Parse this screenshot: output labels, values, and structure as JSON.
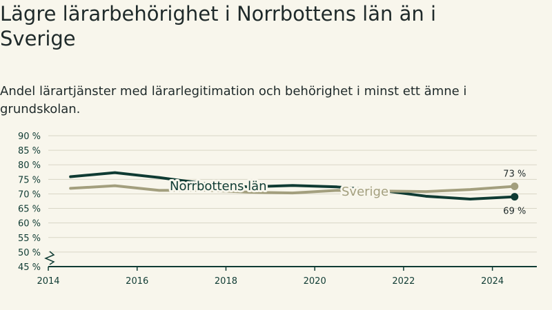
{
  "title": "Lägre lärarbehörighet i Norrbottens län än i Sverige",
  "subtitle": "Andel lärartjänster med lärarlegitimation och behörighet i minst ett ämne i grundskolan.",
  "chart_data": {
    "type": "line",
    "title": "Lägre lärarbehörighet i Norrbottens län än i Sverige",
    "subtitle": "Andel lärartjänster med lärarlegitimation och behörighet i minst ett ämne i grundskolan.",
    "x_ticks": [
      "2014",
      "2016",
      "2018",
      "2020",
      "2022",
      "2024"
    ],
    "y_ticks": [
      "45 %",
      "50 %",
      "55 %",
      "60 %",
      "65 %",
      "70 %",
      "75 %",
      "80 %",
      "85 %",
      "90 %"
    ],
    "xlim": [
      2014,
      2025
    ],
    "ylim": [
      45,
      90
    ],
    "grid": true,
    "axis_break": true,
    "x": [
      2014.5,
      2015.5,
      2016.5,
      2017.5,
      2018.5,
      2019.5,
      2020.5,
      2021.5,
      2022.5,
      2023.5,
      2024.5
    ],
    "series": [
      {
        "name": "Norrbottens län",
        "color": "#0f3b33",
        "values": [
          75.9,
          77.3,
          75.6,
          73.6,
          72.4,
          72.9,
          72.4,
          71.2,
          69.2,
          68.2,
          69
        ],
        "end_label": "69 %"
      },
      {
        "name": "Sverige",
        "color": "#a39f7e",
        "values": [
          71.9,
          72.8,
          71.2,
          71.3,
          70.6,
          70.3,
          71.2,
          71.0,
          70.8,
          71.5,
          72.6
        ],
        "end_label": "73 %"
      }
    ]
  }
}
